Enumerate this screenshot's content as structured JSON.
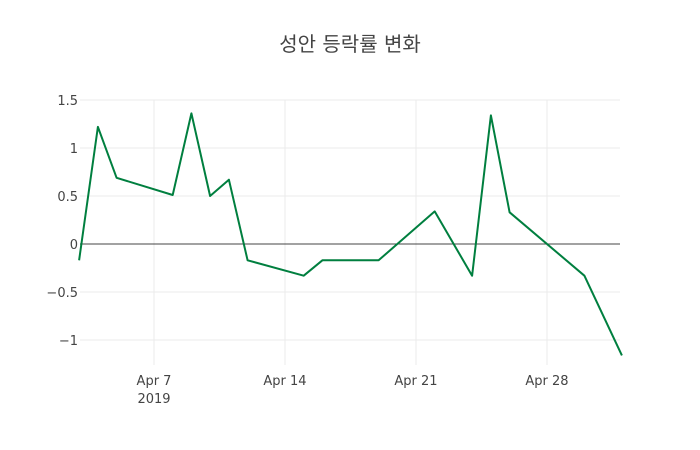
{
  "chart_data": {
    "type": "line",
    "title": "성안 등락률 변화",
    "xlabel": "",
    "ylabel": "",
    "x": [
      "2019-04-03",
      "2019-04-04",
      "2019-04-05",
      "2019-04-08",
      "2019-04-09",
      "2019-04-10",
      "2019-04-11",
      "2019-04-12",
      "2019-04-15",
      "2019-04-16",
      "2019-04-19",
      "2019-04-22",
      "2019-04-24",
      "2019-04-25",
      "2019-04-26",
      "2019-04-30",
      "2019-05-02"
    ],
    "series": [
      {
        "name": "등락률",
        "color": "#007f3f",
        "values": [
          -0.17,
          1.22,
          0.69,
          0.51,
          1.36,
          0.5,
          0.67,
          -0.17,
          -0.33,
          -0.17,
          -0.17,
          0.34,
          -0.33,
          1.34,
          0.33,
          -0.33,
          -1.16
        ]
      }
    ],
    "x_ticks": [
      "Apr 7",
      "Apr 14",
      "Apr 21",
      "Apr 28"
    ],
    "x_tick_year": "2019",
    "y_ticks": [
      "1.5",
      "1",
      "0.5",
      "0",
      "−0.5",
      "−1"
    ],
    "ylim": [
      -1.2,
      1.5
    ],
    "grid": true,
    "zero_line": true
  }
}
